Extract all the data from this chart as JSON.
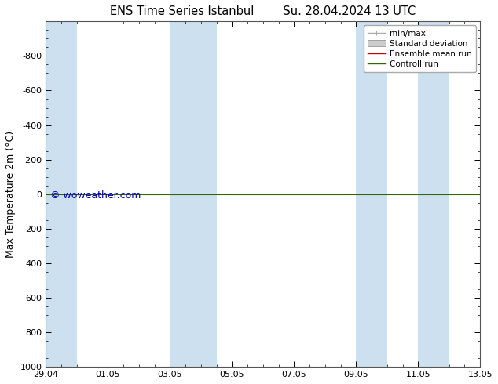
{
  "title_left": "ENS Time Series Istanbul",
  "title_right": "Su. 28.04.2024 13 UTC",
  "ylabel": "Max Temperature 2m (°C)",
  "ylim_bottom": 1000,
  "ylim_top": -1000,
  "yticks": [
    -800,
    -600,
    -400,
    -200,
    0,
    200,
    400,
    600,
    800,
    1000
  ],
  "xlim_left": 0,
  "xlim_right": 14,
  "xtick_positions": [
    0,
    2,
    4,
    6,
    8,
    10,
    12,
    14
  ],
  "xtick_labels": [
    "29.04",
    "01.05",
    "03.05",
    "05.05",
    "07.05",
    "09.05",
    "11.05",
    "13.05"
  ],
  "blue_bands": [
    [
      0,
      1.0
    ],
    [
      4.0,
      5.0
    ],
    [
      5.0,
      5.5
    ],
    [
      10.0,
      11.0
    ],
    [
      12.0,
      13.0
    ]
  ],
  "green_line_y": 0,
  "watermark": "© woweather.com",
  "legend_labels": [
    "min/max",
    "Standard deviation",
    "Ensemble mean run",
    "Controll run"
  ],
  "legend_colors_line": [
    "#aaaaaa",
    "#cccccc",
    "#cc0000",
    "#336600"
  ],
  "background_color": "#ffffff",
  "plot_bg_color": "#ffffff",
  "blue_band_color": "#cce0f0",
  "title_fontsize": 10.5,
  "axis_label_fontsize": 9,
  "tick_fontsize": 8,
  "legend_fontsize": 7.5,
  "watermark_fontsize": 9
}
